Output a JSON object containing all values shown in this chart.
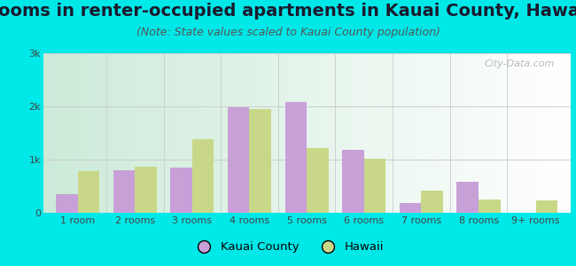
{
  "title": "Rooms in renter-occupied apartments in Kauai County, Hawaii",
  "subtitle": "(Note: State values scaled to Kauai County population)",
  "categories": [
    "1 room",
    "2 rooms",
    "3 rooms",
    "4 rooms",
    "5 rooms",
    "6 rooms",
    "7 rooms",
    "8 rooms",
    "9+ rooms"
  ],
  "kauai_values": [
    350,
    800,
    850,
    1980,
    2080,
    1180,
    190,
    580,
    0
  ],
  "hawaii_values": [
    780,
    860,
    1380,
    1950,
    1220,
    1010,
    420,
    250,
    230
  ],
  "kauai_color": "#c8a0d8",
  "hawaii_color": "#c8d888",
  "background_outer": "#00e8e8",
  "ylim": [
    0,
    3000
  ],
  "yticks": [
    0,
    1000,
    2000,
    3000
  ],
  "ytick_labels": [
    "0",
    "1k",
    "2k",
    "3k"
  ],
  "legend_kauai": "Kauai County",
  "legend_hawaii": "Hawaii",
  "title_fontsize": 14,
  "subtitle_fontsize": 9,
  "watermark": "City-Data.com"
}
